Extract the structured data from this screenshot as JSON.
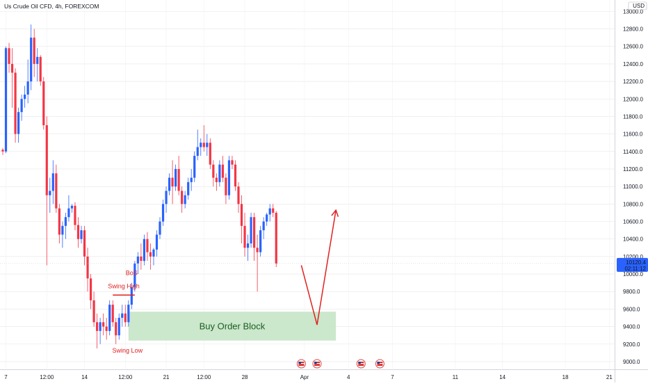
{
  "header": {
    "symbol_title": "Us Crude Oil CFD, 4h, FOREXCOM"
  },
  "price_scale": {
    "currency_label": "USD"
  },
  "last_price": {
    "price": "10120.4",
    "countdown": "02:11:12"
  },
  "colors": {
    "up": "#2962ff",
    "down": "#f23645",
    "annotation": "#e02020",
    "order_block_fill": "#c8e6c9",
    "order_block_text": "#1b5e20",
    "grid": "#e6e6e6",
    "last_price_tag": "#2962ff"
  },
  "chart_data": {
    "type": "candlestick",
    "title": "Us Crude Oil CFD, 4h, FOREXCOM",
    "xlabel": "",
    "ylabel": "",
    "ylim": [
      8920,
      13130
    ],
    "y_ticks": [
      "9000.0",
      "9200.0",
      "9400.0",
      "9600.0",
      "9800.0",
      "10000.0",
      "10200.0",
      "10400.0",
      "10600.0",
      "10800.0",
      "11000.0",
      "11200.0",
      "11400.0",
      "11600.0",
      "11800.0",
      "12000.0",
      "12200.0",
      "12400.0",
      "12600.0",
      "12800.0",
      "13000.0"
    ],
    "y_tick_values": [
      9000,
      9200,
      9400,
      9600,
      9800,
      10000,
      10200,
      10400,
      10600,
      10800,
      11000,
      11200,
      11400,
      11600,
      11800,
      12000,
      12200,
      12400,
      12600,
      12800,
      13000
    ],
    "x_ticks": [
      {
        "label": "7",
        "bar": 1
      },
      {
        "label": "12:00",
        "bar": 14
      },
      {
        "label": "14",
        "bar": 26
      },
      {
        "label": "12:00",
        "bar": 39
      },
      {
        "label": "21",
        "bar": 52
      },
      {
        "label": "12:00",
        "bar": 64
      },
      {
        "label": "28",
        "bar": 77
      },
      {
        "label": "Apr",
        "bar": 96
      },
      {
        "label": "4",
        "bar": 110
      },
      {
        "label": "7",
        "bar": 124
      },
      {
        "label": "11",
        "bar": 144
      },
      {
        "label": "14",
        "bar": 159
      },
      {
        "label": "18",
        "bar": 179
      },
      {
        "label": "21",
        "bar": 193
      }
    ],
    "candles": [
      [
        11420,
        11440,
        11360,
        11400
      ],
      [
        11400,
        12600,
        11380,
        12580
      ],
      [
        12580,
        12640,
        12300,
        12400
      ],
      [
        12400,
        12580,
        11900,
        12300
      ],
      [
        12300,
        12350,
        11500,
        11600
      ],
      [
        11600,
        11900,
        11500,
        11850
      ],
      [
        11850,
        12050,
        11750,
        12000
      ],
      [
        12000,
        12150,
        11900,
        12050
      ],
      [
        12050,
        12450,
        11950,
        12200
      ],
      [
        12200,
        12850,
        12100,
        12700
      ],
      [
        12700,
        12800,
        12250,
        12400
      ],
      [
        12400,
        12580,
        12200,
        12480
      ],
      [
        12480,
        12500,
        12150,
        12200
      ],
      [
        12200,
        12250,
        11650,
        11700
      ],
      [
        11700,
        11800,
        10100,
        10900
      ],
      [
        10900,
        11100,
        10700,
        10950
      ],
      [
        10950,
        11300,
        10800,
        11150
      ],
      [
        11150,
        11250,
        10700,
        10750
      ],
      [
        10750,
        10800,
        10350,
        10450
      ],
      [
        10450,
        10600,
        10300,
        10550
      ],
      [
        10550,
        10700,
        10400,
        10650
      ],
      [
        10650,
        10900,
        10600,
        10750
      ],
      [
        10750,
        10800,
        10700,
        10780
      ],
      [
        10780,
        10820,
        10500,
        10560
      ],
      [
        10560,
        10650,
        10300,
        10400
      ],
      [
        10400,
        10550,
        10350,
        10500
      ],
      [
        10500,
        10550,
        10100,
        10200
      ],
      [
        10200,
        10300,
        9800,
        9950
      ],
      [
        9950,
        10000,
        9600,
        9700
      ],
      [
        9700,
        9800,
        9400,
        9450
      ],
      [
        9450,
        9550,
        9150,
        9350
      ],
      [
        9350,
        9500,
        9200,
        9450
      ],
      [
        9450,
        9550,
        9300,
        9400
      ],
      [
        9400,
        9500,
        9250,
        9350
      ],
      [
        9350,
        9700,
        9300,
        9650
      ],
      [
        9650,
        9700,
        9400,
        9450
      ],
      [
        9450,
        9500,
        9200,
        9300
      ],
      [
        9300,
        9550,
        9250,
        9500
      ],
      [
        9500,
        9650,
        9400,
        9550
      ],
      [
        9550,
        9650,
        9400,
        9450
      ],
      [
        9450,
        9700,
        9400,
        9650
      ],
      [
        9650,
        9900,
        9600,
        9850
      ],
      [
        9850,
        10150,
        9800,
        10120
      ],
      [
        10120,
        10250,
        10000,
        10200
      ],
      [
        10200,
        10350,
        10050,
        10150
      ],
      [
        10150,
        10450,
        10100,
        10400
      ],
      [
        10400,
        10480,
        10150,
        10250
      ],
      [
        10250,
        10350,
        10050,
        10200
      ],
      [
        10200,
        10300,
        10100,
        10280
      ],
      [
        10280,
        10500,
        10200,
        10450
      ],
      [
        10450,
        10650,
        10400,
        10600
      ],
      [
        10600,
        10850,
        10550,
        10800
      ],
      [
        10800,
        11000,
        10700,
        10950
      ],
      [
        10950,
        11150,
        10900,
        11100
      ],
      [
        11100,
        11300,
        10800,
        11000
      ],
      [
        11000,
        11250,
        10950,
        11200
      ],
      [
        11200,
        11350,
        10900,
        10950
      ],
      [
        10950,
        11000,
        10700,
        10800
      ],
      [
        10800,
        10950,
        10750,
        10900
      ],
      [
        10900,
        11100,
        10850,
        11050
      ],
      [
        11050,
        11200,
        10950,
        11100
      ],
      [
        11100,
        11400,
        11050,
        11350
      ],
      [
        11350,
        11650,
        11300,
        11450
      ],
      [
        11450,
        11550,
        11350,
        11500
      ],
      [
        11500,
        11700,
        11400,
        11450
      ],
      [
        11450,
        11600,
        11350,
        11500
      ],
      [
        11500,
        11550,
        11200,
        11250
      ],
      [
        11250,
        11300,
        11000,
        11100
      ],
      [
        11100,
        11150,
        10950,
        11050
      ],
      [
        11050,
        11300,
        11000,
        11250
      ],
      [
        11250,
        11350,
        11050,
        11100
      ],
      [
        11100,
        11150,
        10800,
        10900
      ],
      [
        10900,
        11350,
        10850,
        11300
      ],
      [
        11300,
        11350,
        11200,
        11250
      ],
      [
        11250,
        11300,
        10950,
        11000
      ],
      [
        11000,
        11050,
        10700,
        10800
      ],
      [
        10800,
        10900,
        10350,
        10550
      ],
      [
        10550,
        10700,
        10200,
        10300
      ],
      [
        10300,
        10450,
        10150,
        10350
      ],
      [
        10350,
        10700,
        10300,
        10650
      ],
      [
        10650,
        10700,
        10150,
        10300
      ],
      [
        10300,
        10450,
        9800,
        10250
      ],
      [
        10250,
        10550,
        10200,
        10500
      ],
      [
        10500,
        10650,
        10400,
        10600
      ],
      [
        10600,
        10700,
        10550,
        10680
      ],
      [
        10680,
        10800,
        10600,
        10750
      ],
      [
        10750,
        10800,
        10650,
        10700
      ],
      [
        10700,
        10720,
        10080,
        10120
      ]
    ],
    "annotations": {
      "swing_high": {
        "label": "Swing High",
        "price": 9760,
        "bar_from": 35,
        "bar_to": 42
      },
      "bos": {
        "label": "BoS",
        "price": 9950,
        "bar": 41
      },
      "swing_low": {
        "label": "Swing Low",
        "price": 9150,
        "bar": 41
      },
      "order_block": {
        "label": "Buy Order Block",
        "price_from": 9240,
        "price_to": 9570,
        "bar_from": 40,
        "bar_to": 106
      },
      "projection": {
        "points": [
          [
            95,
            10100
          ],
          [
            100,
            9420
          ],
          [
            106,
            10730
          ]
        ]
      }
    },
    "last_price_line": 10120.4,
    "grid": true
  }
}
